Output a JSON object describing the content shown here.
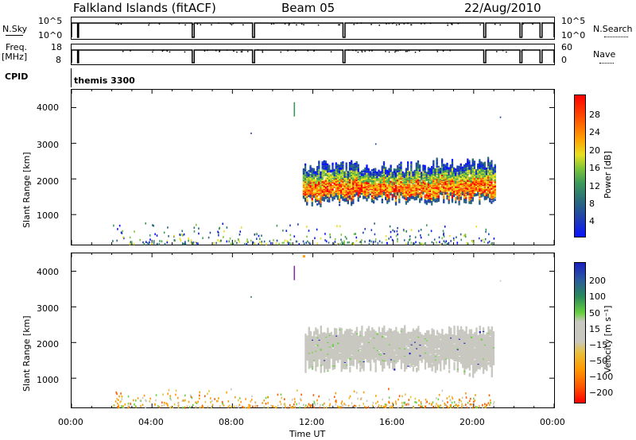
{
  "header": {
    "station": "Falkland Islands (fitACF)",
    "beam": "Beam 05",
    "date": "22/Aug/2010"
  },
  "strip_labels": {
    "nsky": "N.Sky",
    "nsky_ticks": [
      "10^5",
      "10^0"
    ],
    "nsearch": "N.Search",
    "nsearch_ticks": [
      "10^5",
      "10^0"
    ],
    "freq": "Freq.",
    "freq_unit": "[MHz]",
    "freq_ticks": [
      "18",
      "8"
    ],
    "nave": "Nave",
    "nave_ticks": [
      "60",
      "0"
    ],
    "cpid": "CPID",
    "cpid_value": "themis 3300"
  },
  "power_panel": {
    "ylabel": "Slant Range [km]",
    "yticks": [
      "4000",
      "3000",
      "2000",
      "1000"
    ],
    "colorbar_label": "Power [dB]",
    "colorbar_ticks": [
      "28",
      "24",
      "20",
      "16",
      "12",
      "8",
      "4"
    ],
    "colors": [
      "#0a14ff",
      "#2244aa",
      "#2a6e7a",
      "#3c9a5a",
      "#7cc43a",
      "#e8e020",
      "#ff9c00",
      "#ff5a00",
      "#ff0000"
    ]
  },
  "velocity_panel": {
    "ylabel": "Slant Range [km]",
    "yticks": [
      "4000",
      "3000",
      "2000",
      "1000"
    ],
    "colorbar_label": "Velocity [m s⁻¹]",
    "colorbar_ticks": [
      "200",
      "100",
      "50",
      "15",
      "−15",
      "−50",
      "−100",
      "−200"
    ],
    "colors": [
      "#1a20c0",
      "#2a5aa0",
      "#2a8a5a",
      "#6ad040",
      "#c8c8c0",
      "#e8c040",
      "#ff9a00",
      "#ff5a00",
      "#ff0000"
    ]
  },
  "xaxis": {
    "ticks": [
      "00:00",
      "04:00",
      "08:00",
      "12:00",
      "16:00",
      "20:00",
      "00:00"
    ],
    "label": "Time UT"
  },
  "chart_data": [
    {
      "type": "heatmap",
      "title": "Power",
      "x_range_hours": [
        0,
        24
      ],
      "y_range_km": [
        180,
        4500
      ],
      "colorbar_range_db": [
        0,
        32
      ],
      "echo_region": {
        "x_hours": [
          11.5,
          21.1
        ],
        "y_km": [
          1200,
          2500
        ],
        "peak_db": 28
      },
      "sparse_ground_scatter": {
        "x_hours": [
          2,
          21
        ],
        "y_km": [
          180,
          700
        ]
      }
    },
    {
      "type": "heatmap",
      "title": "Velocity",
      "x_range_hours": [
        0,
        24
      ],
      "y_range_km": [
        180,
        4500
      ],
      "colorbar_range_ms": [
        -250,
        250
      ],
      "echo_region": {
        "x_hours": [
          11.5,
          21.1
        ],
        "y_km": [
          1150,
          2500
        ],
        "dominant_value_ms": 0
      }
    }
  ]
}
